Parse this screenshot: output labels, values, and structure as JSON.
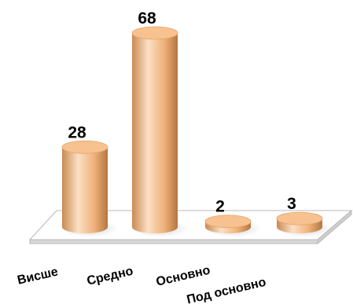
{
  "chart_data": {
    "type": "bar",
    "style": "3d-cylinder",
    "categories": [
      "Висше",
      "Средно",
      "Основно",
      "Под основно"
    ],
    "values": [
      28,
      68,
      2,
      3
    ],
    "ylim": [
      0,
      68
    ],
    "grid": false,
    "legend": "none",
    "colors": {
      "bar_light": "#fce3c9",
      "bar_mid": "#f2b47d",
      "bar_dark": "#b57640",
      "bar_top": "#f7c290",
      "floor": "#ffffff",
      "floor_stroke": "#b8b8b8",
      "floor_side": "#d8d8d8"
    }
  }
}
